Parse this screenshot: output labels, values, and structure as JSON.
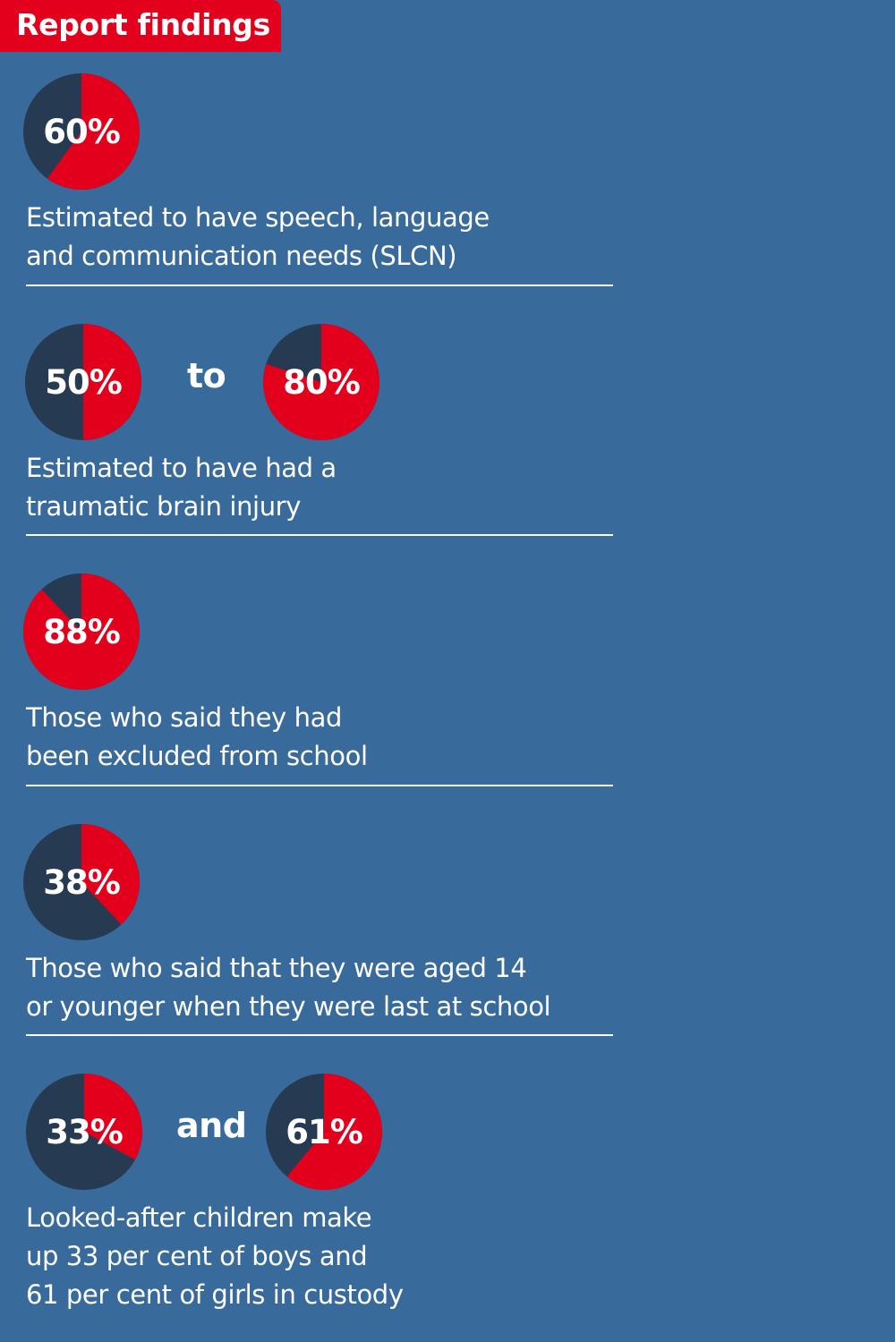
{
  "header": {
    "title": "Report findings"
  },
  "colors": {
    "background": "#386a9b",
    "accent": "#e2001d",
    "dark": "#263a52",
    "text": "#ffffff"
  },
  "chart_data": [
    {
      "type": "pie",
      "title": "Estimated to have speech, language and communication needs (SLCN)",
      "slices": [
        {
          "value": 60,
          "label": "60%"
        }
      ],
      "connector": "",
      "description_lines": [
        "Estimated to have speech, language",
        "and communication needs (SLCN)"
      ]
    },
    {
      "type": "pie",
      "title": "Estimated to have had a traumatic brain injury",
      "slices": [
        {
          "value": 50,
          "label": "50%"
        },
        {
          "value": 80,
          "label": "80%"
        }
      ],
      "connector": "to",
      "description_lines": [
        "Estimated to have had a",
        "traumatic brain injury"
      ]
    },
    {
      "type": "pie",
      "title": "Those who said they had been excluded from school",
      "slices": [
        {
          "value": 88,
          "label": "88%"
        }
      ],
      "connector": "",
      "description_lines": [
        "Those who said they had",
        "been excluded from school"
      ]
    },
    {
      "type": "pie",
      "title": "Those who said that they were aged 14 or younger when they were last at school",
      "slices": [
        {
          "value": 38,
          "label": "38%"
        }
      ],
      "connector": "",
      "description_lines": [
        "Those who said that they were aged 14",
        "or younger when they were last at school"
      ]
    },
    {
      "type": "pie",
      "title": "Looked-after children make up 33 per cent of boys and 61 per cent of girls in custody",
      "slices": [
        {
          "value": 33,
          "label": "33%"
        },
        {
          "value": 61,
          "label": "61%"
        }
      ],
      "connector": "and",
      "description_lines": [
        "Looked-after children make",
        "up 33 per cent of boys and",
        "61 per cent of girls in custody"
      ]
    }
  ]
}
